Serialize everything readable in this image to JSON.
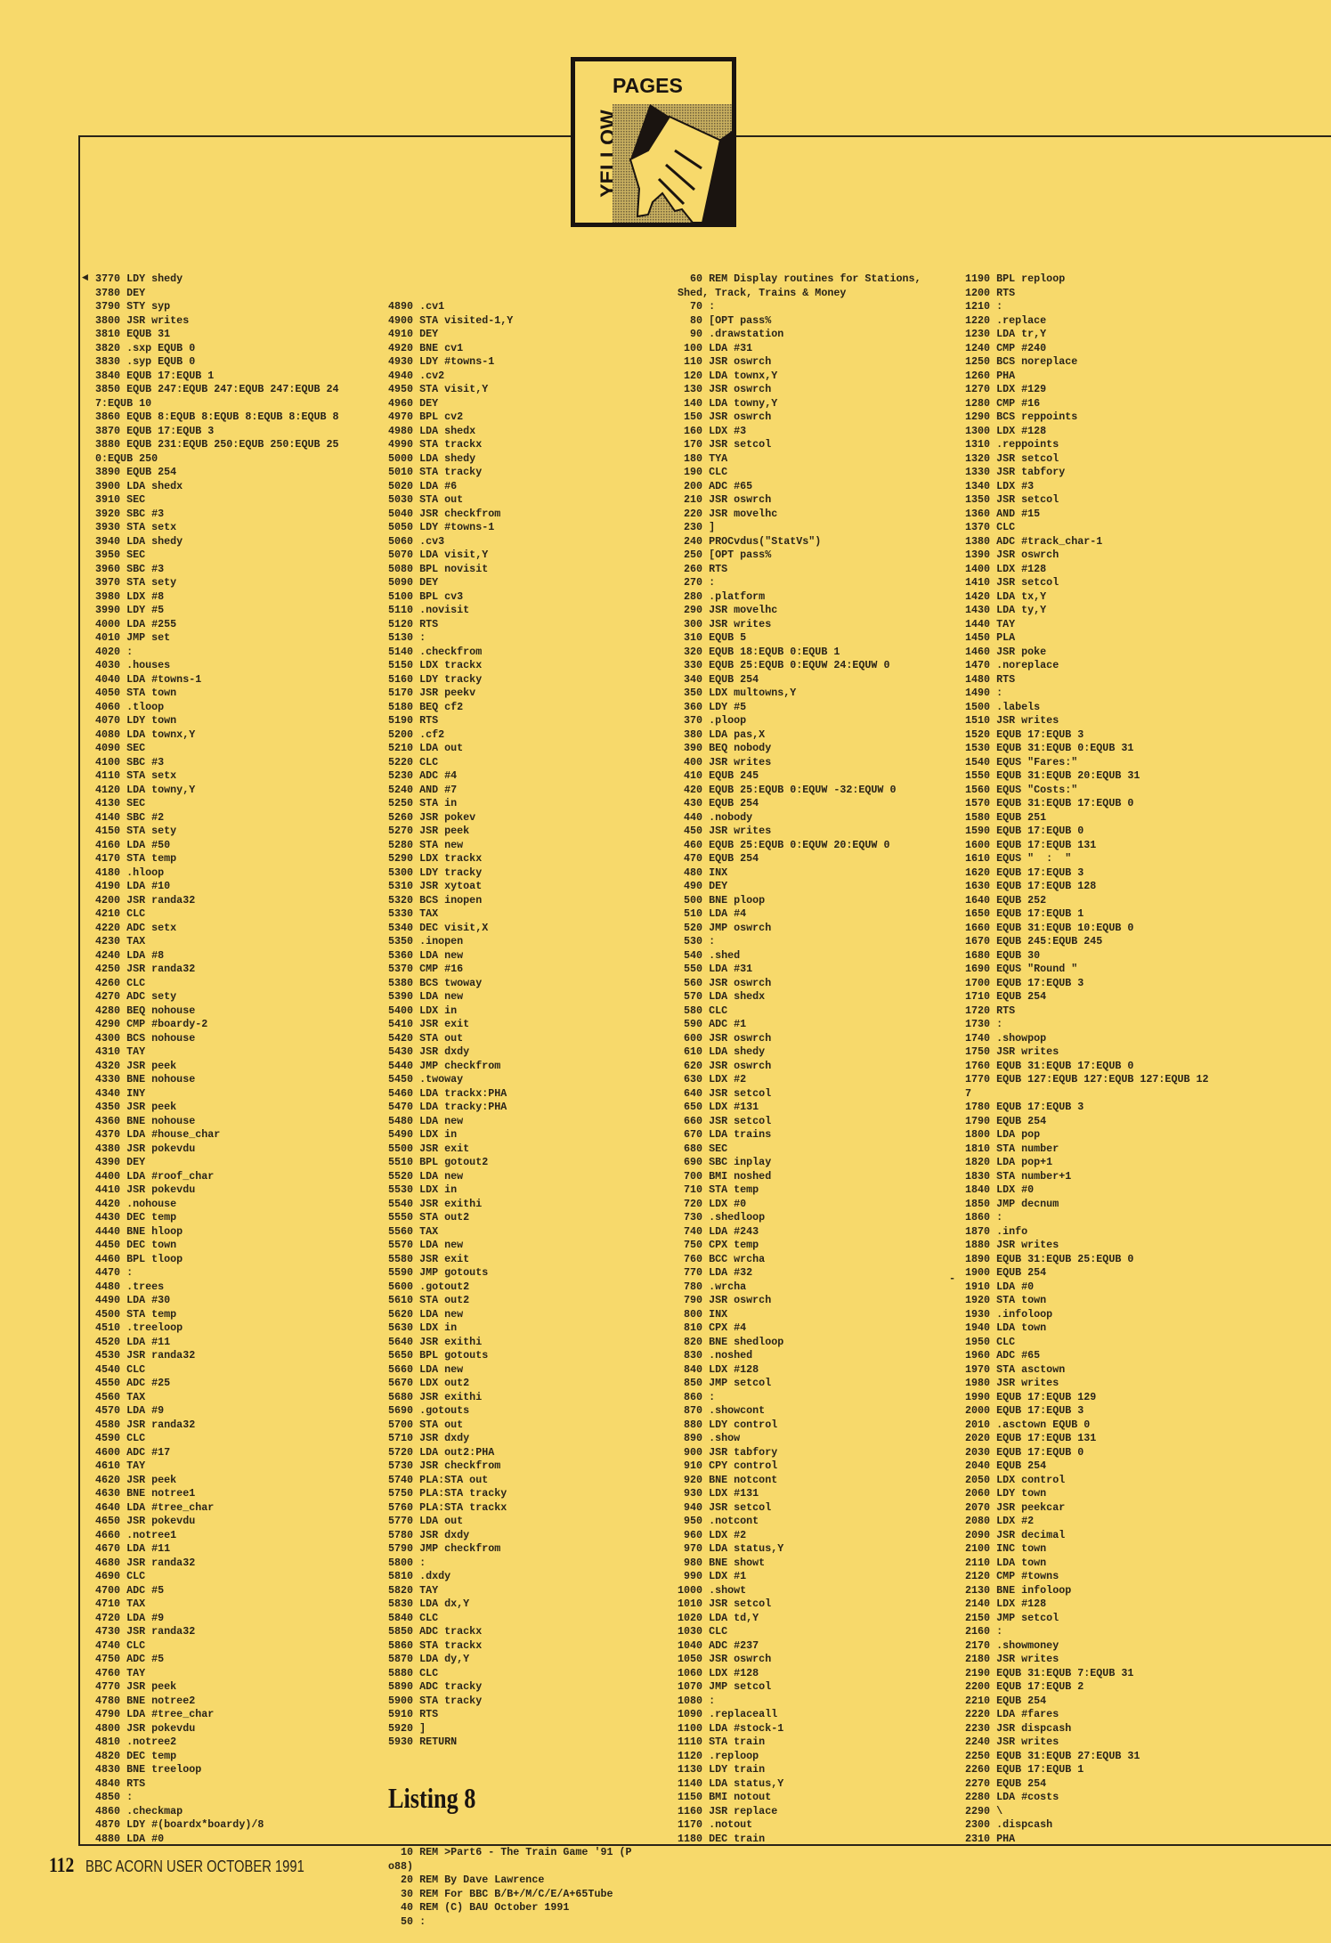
{
  "logo": {
    "top_word": "PAGES",
    "side_word": "YELLOW",
    "icon": "hand-icon"
  },
  "colors": {
    "page": "#f7d96b",
    "ink": "#2a2418"
  },
  "columns": [
    {
      "lines": [
        "3770 LDY shedy",
        "3780 DEY",
        "3790 STY syp",
        "3800 JSR writes",
        "3810 EQUB 31",
        "3820 .sxp EQUB 0",
        "3830 .syp EQUB 0",
        "3840 EQUB 17:EQUB 1",
        "3850 EQUB 247:EQUB 247:EQUB 247:EQUB 24",
        "7:EQUB 10",
        "3860 EQUB 8:EQUB 8:EQUB 8:EQUB 8:EQUB 8",
        "3870 EQUB 17:EQUB 3",
        "3880 EQUB 231:EQUB 250:EQUB 250:EQUB 25",
        "0:EQUB 250",
        "3890 EQUB 254",
        "3900 LDA shedx",
        "3910 SEC",
        "3920 SBC #3",
        "3930 STA setx",
        "3940 LDA shedy",
        "3950 SEC",
        "3960 SBC #3",
        "3970 STA sety",
        "3980 LDX #8",
        "3990 LDY #5",
        "4000 LDA #255",
        "4010 JMP set",
        "4020 :",
        "4030 .houses",
        "4040 LDA #towns-1",
        "4050 STA town",
        "4060 .tloop",
        "4070 LDY town",
        "4080 LDA townx,Y",
        "4090 SEC",
        "4100 SBC #3",
        "4110 STA setx",
        "4120 LDA towny,Y",
        "4130 SEC",
        "4140 SBC #2",
        "4150 STA sety",
        "4160 LDA #50",
        "4170 STA temp",
        "4180 .hloop",
        "4190 LDA #10",
        "4200 JSR randa32",
        "4210 CLC",
        "4220 ADC setx",
        "4230 TAX",
        "4240 LDA #8",
        "4250 JSR randa32",
        "4260 CLC",
        "4270 ADC sety",
        "4280 BEQ nohouse",
        "4290 CMP #boardy-2",
        "4300 BCS nohouse",
        "4310 TAY",
        "4320 JSR peek",
        "4330 BNE nohouse",
        "4340 INY",
        "4350 JSR peek",
        "4360 BNE nohouse",
        "4370 LDA #house_char",
        "4380 JSR pokevdu",
        "4390 DEY",
        "4400 LDA #roof_char",
        "4410 JSR pokevdu",
        "4420 .nohouse",
        "4430 DEC temp",
        "4440 BNE hloop",
        "4450 DEC town",
        "4460 BPL tloop",
        "4470 :",
        "4480 .trees",
        "4490 LDA #30",
        "4500 STA temp",
        "4510 .treeloop",
        "4520 LDA #11",
        "4530 JSR randa32",
        "4540 CLC",
        "4550 ADC #25",
        "4560 TAX",
        "4570 LDA #9",
        "4580 JSR randa32",
        "4590 CLC",
        "4600 ADC #17",
        "4610 TAY",
        "4620 JSR peek",
        "4630 BNE notree1",
        "4640 LDA #tree_char",
        "4650 JSR pokevdu",
        "4660 .notree1",
        "4670 LDA #11",
        "4680 JSR randa32",
        "4690 CLC",
        "4700 ADC #5",
        "4710 TAX",
        "4720 LDA #9",
        "4730 JSR randa32",
        "4740 CLC",
        "4750 ADC #5",
        "4760 TAY",
        "4770 JSR peek",
        "4780 BNE notree2",
        "4790 LDA #tree_char",
        "4800 JSR pokevdu",
        "4810 .notree2",
        "4820 DEC temp",
        "4830 BNE treeloop",
        "4840 RTS",
        "4850 :",
        "4860 .checkmap",
        "4870 LDY #(boardx*boardy)/8",
        "4880 LDA #0"
      ]
    },
    {
      "lines": [
        "4890 .cv1",
        "4900 STA visited-1,Y",
        "4910 DEY",
        "4920 BNE cv1",
        "4930 LDY #towns-1",
        "4940 .cv2",
        "4950 STA visit,Y",
        "4960 DEY",
        "4970 BPL cv2",
        "4980 LDA shedx",
        "4990 STA trackx",
        "5000 LDA shedy",
        "5010 STA tracky",
        "5020 LDA #6",
        "5030 STA out",
        "5040 JSR checkfrom",
        "5050 LDY #towns-1",
        "5060 .cv3",
        "5070 LDA visit,Y",
        "5080 BPL novisit",
        "5090 DEY",
        "5100 BPL cv3",
        "5110 .novisit",
        "5120 RTS",
        "5130 :",
        "5140 .checkfrom",
        "5150 LDX trackx",
        "5160 LDY tracky",
        "5170 JSR peekv",
        "5180 BEQ cf2",
        "5190 RTS",
        "5200 .cf2",
        "5210 LDA out",
        "5220 CLC",
        "5230 ADC #4",
        "5240 AND #7",
        "5250 STA in",
        "5260 JSR pokev",
        "5270 JSR peek",
        "5280 STA new",
        "5290 LDX trackx",
        "5300 LDY tracky",
        "5310 JSR xytoat",
        "5320 BCS inopen",
        "5330 TAX",
        "5340 DEC visit,X",
        "5350 .inopen",
        "5360 LDA new",
        "5370 CMP #16",
        "5380 BCS twoway",
        "5390 LDA new",
        "5400 LDX in",
        "5410 JSR exit",
        "5420 STA out",
        "5430 JSR dxdy",
        "5440 JMP checkfrom",
        "5450 .twoway",
        "5460 LDA trackx:PHA",
        "5470 LDA tracky:PHA",
        "5480 LDA new",
        "5490 LDX in",
        "5500 JSR exit",
        "5510 BPL gotout2",
        "5520 LDA new",
        "5530 LDX in",
        "5540 JSR exithi",
        "5550 STA out2",
        "5560 TAX",
        "5570 LDA new",
        "5580 JSR exit",
        "5590 JMP gotouts",
        "5600 .gotout2",
        "5610 STA out2",
        "5620 LDA new",
        "5630 LDX in",
        "5640 JSR exithi",
        "5650 BPL gotouts",
        "5660 LDA new",
        "5670 LDX out2",
        "5680 JSR exithi",
        "5690 .gotouts",
        "5700 STA out",
        "5710 JSR dxdy",
        "5720 LDA out2:PHA",
        "5730 JSR checkfrom",
        "5740 PLA:STA out",
        "5750 PLA:STA tracky",
        "5760 PLA:STA trackx",
        "5770 LDA out",
        "5780 JSR dxdy",
        "5790 JMP checkfrom",
        "5800 :",
        "5810 .dxdy",
        "5820 TAY",
        "5830 LDA dx,Y",
        "5840 CLC",
        "5850 ADC trackx",
        "5860 STA trackx",
        "5870 LDA dy,Y",
        "5880 CLC",
        "5890 ADC tracky",
        "5900 STA tracky",
        "5910 RTS",
        "5920 ]",
        "5930 RETURN"
      ],
      "heading": "Listing 8",
      "lines_after": [
        "10 REM >Part6 - The Train Game '91 (P",
        "o88)",
        "20 REM By Dave Lawrence",
        "30 REM For BBC B/B+/M/C/E/A+65Tube",
        "40 REM (C) BAU October 1991",
        "50 :"
      ]
    },
    {
      "lines": [
        "60 REM Display routines for Stations,",
        "Shed, Track, Trains & Money",
        "70 :",
        "80 [OPT pass%",
        "90 .drawstation",
        "100 LDA #31",
        "110 JSR oswrch",
        "120 LDA townx,Y",
        "130 JSR oswrch",
        "140 LDA towny,Y",
        "150 JSR oswrch",
        "160 LDX #3",
        "170 JSR setcol",
        "180 TYA",
        "190 CLC",
        "200 ADC #65",
        "210 JSR oswrch",
        "220 JSR movelhc",
        "230 ]",
        "240 PROCvdus(\"StatVs\")",
        "250 [OPT pass%",
        "260 RTS",
        "270 :",
        "280 .platform",
        "290 JSR movelhc",
        "300 JSR writes",
        "310 EQUB 5",
        "320 EQUB 18:EQUB 0:EQUB 1",
        "330 EQUB 25:EQUB 0:EQUW 24:EQUW 0",
        "340 EQUB 254",
        "350 LDX multowns,Y",
        "360 LDY #5",
        "370 .ploop",
        "380 LDA pas,X",
        "390 BEQ nobody",
        "400 JSR writes",
        "410 EQUB 245",
        "420 EQUB 25:EQUB 0:EQUW -32:EQUW 0",
        "430 EQUB 254",
        "440 .nobody",
        "450 JSR writes",
        "460 EQUB 25:EQUB 0:EQUW 20:EQUW 0",
        "470 EQUB 254",
        "480 INX",
        "490 DEY",
        "500 BNE ploop",
        "510 LDA #4",
        "520 JMP oswrch",
        "530 :",
        "540 .shed",
        "550 LDA #31",
        "560 JSR oswrch",
        "570 LDA shedx",
        "580 CLC",
        "590 ADC #1",
        "600 JSR oswrch",
        "610 LDA shedy",
        "620 JSR oswrch",
        "630 LDX #2",
        "640 JSR setcol",
        "650 LDX #131",
        "660 JSR setcol",
        "670 LDA trains",
        "680 SEC",
        "690 SBC inplay",
        "700 BMI noshed",
        "710 STA temp",
        "720 LDX #0",
        "730 .shedloop",
        "740 LDA #243",
        "750 CPX temp",
        "760 BCC wrcha",
        "770 LDA #32",
        "780 .wrcha",
        "790 JSR oswrch",
        "800 INX",
        "810 CPX #4",
        "820 BNE shedloop",
        "830 .noshed",
        "840 LDX #128",
        "850 JMP setcol",
        "860 :",
        "870 .showcont",
        "880 LDY control",
        "890 .show",
        "900 JSR tabfory",
        "910 CPY control",
        "920 BNE notcont",
        "930 LDX #131",
        "940 JSR setcol",
        "950 .notcont",
        "960 LDX #2",
        "970 LDA status,Y",
        "980 BNE showt",
        "990 LDX #1",
        "1000 .showt",
        "1010 JSR setcol",
        "1020 LDA td,Y",
        "1030 CLC",
        "1040 ADC #237",
        "1050 JSR oswrch",
        "1060 LDX #128",
        "1070 JMP setcol",
        "1080 :",
        "1090 .replaceall",
        "1100 LDA #stock-1",
        "1110 STA train",
        "1120 .reploop",
        "1130 LDY train",
        "1140 LDA status,Y",
        "1150 BMI notout",
        "1160 JSR replace",
        "1170 .notout",
        "1180 DEC train"
      ]
    },
    {
      "lines": [
        "1190 BPL reploop",
        "1200 RTS",
        "1210 :",
        "1220 .replace",
        "1230 LDA tr,Y",
        "1240 CMP #240",
        "1250 BCS noreplace",
        "1260 PHA",
        "1270 LDX #129",
        "1280 CMP #16",
        "1290 BCS reppoints",
        "1300 LDX #128",
        "1310 .reppoints",
        "1320 JSR setcol",
        "1330 JSR tabfory",
        "1340 LDX #3",
        "1350 JSR setcol",
        "1360 AND #15",
        "1370 CLC",
        "1380 ADC #track_char-1",
        "1390 JSR oswrch",
        "1400 LDX #128",
        "1410 JSR setcol",
        "1420 LDA tx,Y",
        "1430 LDA ty,Y",
        "1440 TAY",
        "1450 PLA",
        "1460 JSR poke",
        "1470 .noreplace",
        "1480 RTS",
        "1490 :",
        "1500 .labels",
        "1510 JSR writes",
        "1520 EQUB 17:EQUB 3",
        "1530 EQUB 31:EQUB 0:EQUB 31",
        "1540 EQUS \"Fares:\"",
        "1550 EQUB 31:EQUB 20:EQUB 31",
        "1560 EQUS \"Costs:\"",
        "1570 EQUB 31:EQUB 17:EQUB 0",
        "1580 EQUB 251",
        "1590 EQUB 17:EQUB 0",
        "1600 EQUB 17:EQUB 131",
        "1610 EQUS \"  :  \"",
        "1620 EQUB 17:EQUB 3",
        "1630 EQUB 17:EQUB 128",
        "1640 EQUB 252",
        "1650 EQUB 17:EQUB 1",
        "1660 EQUB 31:EQUB 10:EQUB 0",
        "1670 EQUB 245:EQUB 245",
        "1680 EQUB 30",
        "1690 EQUS \"Round \"",
        "1700 EQUB 17:EQUB 3",
        "1710 EQUB 254",
        "1720 RTS",
        "1730 :",
        "1740 .showpop",
        "1750 JSR writes",
        "1760 EQUB 31:EQUB 17:EQUB 0",
        "1770 EQUB 127:EQUB 127:EQUB 127:EQUB 12",
        "7",
        "1780 EQUB 17:EQUB 3",
        "1790 EQUB 254",
        "1800 LDA pop",
        "1810 STA number",
        "1820 LDA pop+1",
        "1830 STA number+1",
        "1840 LDX #0",
        "1850 JMP decnum",
        "1860 :",
        "1870 .info",
        "1880 JSR writes",
        "1890 EQUB 31:EQUB 25:EQUB 0",
        "1900 EQUB 254",
        "1910 LDA #0",
        "1920 STA town",
        "1930 .infoloop",
        "1940 LDA town",
        "1950 CLC",
        "1960 ADC #65",
        "1970 STA asctown",
        "1980 JSR writes",
        "1990 EQUB 17:EQUB 129",
        "2000 EQUB 17:EQUB 3",
        "2010 .asctown EQUB 0",
        "2020 EQUB 17:EQUB 131",
        "2030 EQUB 17:EQUB 0",
        "2040 EQUB 254",
        "2050 LDX control",
        "2060 LDY town",
        "2070 JSR peekcar",
        "2080 LDX #2",
        "2090 JSR decimal",
        "2100 INC town",
        "2110 LDA town",
        "2120 CMP #towns",
        "2130 BNE infoloop",
        "2140 LDX #128",
        "2150 JMP setcol",
        "2160 :",
        "2170 .showmoney",
        "2180 JSR writes",
        "2190 EQUB 31:EQUB 7:EQUB 31",
        "2200 EQUB 17:EQUB 2",
        "2210 EQUB 254",
        "2220 LDA #fares",
        "2230 JSR dispcash",
        "2240 JSR writes",
        "2250 EQUB 31:EQUB 27:EQUB 31",
        "2260 EQUB 17:EQUB 1",
        "2270 EQUB 254",
        "2280 LDA #costs",
        "2290 \\",
        "2300 .dispcash",
        "2310 PHA"
      ]
    }
  ],
  "margin_marks": {
    "arrow": "◄",
    "dash": "-"
  },
  "footer": {
    "page_number": "112",
    "publication": "BBC ACORN USER OCTOBER 1991"
  }
}
